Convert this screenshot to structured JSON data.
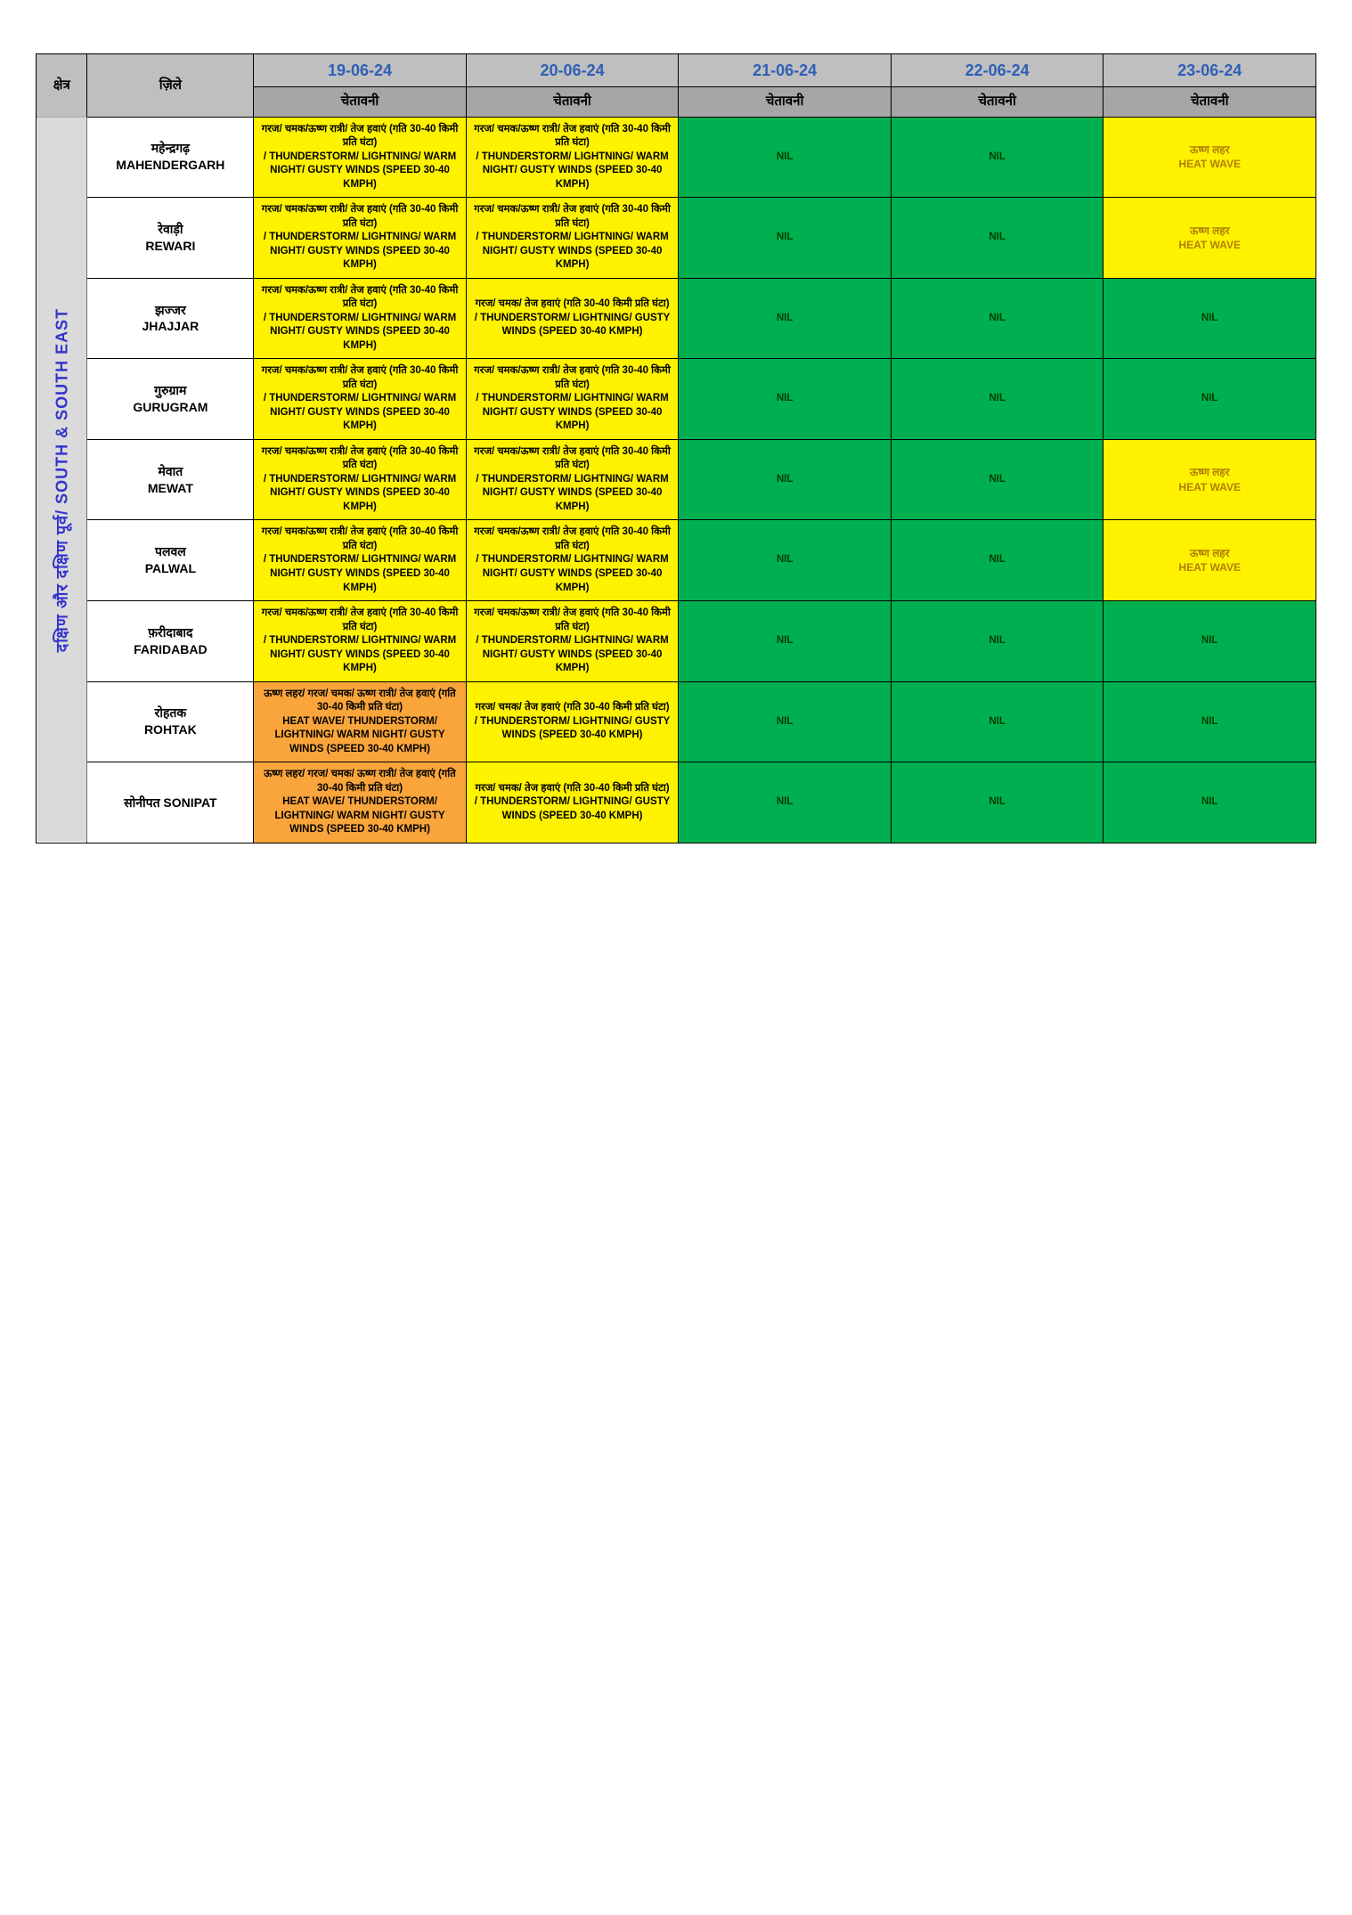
{
  "colors": {
    "header_grey": "#bfbfbf",
    "warning_grey": "#a6a6a6",
    "region_bg": "#dadada",
    "region_text": "#3333cc",
    "date_text": "#2e5fb7",
    "yellow": "#fff200",
    "orange": "#f9a53b",
    "green": "#00b050",
    "white": "#ffffff",
    "border": "#000000"
  },
  "header": {
    "region": "क्षेत्र",
    "district": "ज़िले",
    "dates": [
      "19-06-24",
      "20-06-24",
      "21-06-24",
      "22-06-24",
      "23-06-24"
    ],
    "warning": "चेतावनी"
  },
  "region_label": "दक्षिण और दक्षिण पूर्व/ SOUTH & SOUTH EAST",
  "warnings": {
    "ts_warm": "गरज/ चमक/ऊष्ण रात्री/ तेज हवाएं (गति 30-40 किमी प्रति घंटा)\n/ THUNDERSTORM/ LIGHTNING/ WARM NIGHT/ GUSTY WINDS (SPEED 30-40 KMPH)",
    "ts": "गरज/ चमक/ तेज हवाएं (गति 30-40 किमी प्रति घंटा)\n/ THUNDERSTORM/ LIGHTNING/ GUSTY WINDS (SPEED 30-40 KMPH)",
    "heat_ts": "ऊष्ण लहर/ गरज/ चमक/ ऊष्ण रात्री/ तेज हवाएं (गति 30-40 किमी प्रति घंटा)\nHEAT WAVE/ THUNDERSTORM/ LIGHTNING/ WARM NIGHT/ GUSTY WINDS (SPEED 30-40 KMPH)",
    "nil": "NIL",
    "heat": "ऊष्ण लहर\nHEAT WAVE"
  },
  "rows": [
    {
      "district_hi": "महेन्द्रगढ़",
      "district_en": "MAHENDERGARH",
      "cells": [
        {
          "key": "ts_warm",
          "cls": "cell-yellow"
        },
        {
          "key": "ts_warm",
          "cls": "cell-yellow"
        },
        {
          "key": "nil",
          "cls": "cell-green"
        },
        {
          "key": "nil",
          "cls": "cell-green"
        },
        {
          "key": "heat",
          "cls": "cell-heat"
        }
      ]
    },
    {
      "district_hi": "रेवाड़ी",
      "district_en": "REWARI",
      "cells": [
        {
          "key": "ts_warm",
          "cls": "cell-yellow"
        },
        {
          "key": "ts_warm",
          "cls": "cell-yellow"
        },
        {
          "key": "nil",
          "cls": "cell-green"
        },
        {
          "key": "nil",
          "cls": "cell-green"
        },
        {
          "key": "heat",
          "cls": "cell-heat"
        }
      ]
    },
    {
      "district_hi": "झज्जर",
      "district_en": "JHAJJAR",
      "cells": [
        {
          "key": "ts_warm",
          "cls": "cell-yellow"
        },
        {
          "key": "ts",
          "cls": "cell-yellow"
        },
        {
          "key": "nil",
          "cls": "cell-green"
        },
        {
          "key": "nil",
          "cls": "cell-green"
        },
        {
          "key": "nil",
          "cls": "cell-green"
        }
      ]
    },
    {
      "district_hi": "गुरुग्राम",
      "district_en": "GURUGRAM",
      "cells": [
        {
          "key": "ts_warm",
          "cls": "cell-yellow"
        },
        {
          "key": "ts_warm",
          "cls": "cell-yellow"
        },
        {
          "key": "nil",
          "cls": "cell-green"
        },
        {
          "key": "nil",
          "cls": "cell-green"
        },
        {
          "key": "nil",
          "cls": "cell-green"
        }
      ]
    },
    {
      "district_hi": "मेवात",
      "district_en": "MEWAT",
      "cells": [
        {
          "key": "ts_warm",
          "cls": "cell-yellow"
        },
        {
          "key": "ts_warm",
          "cls": "cell-yellow"
        },
        {
          "key": "nil",
          "cls": "cell-green"
        },
        {
          "key": "nil",
          "cls": "cell-green"
        },
        {
          "key": "heat",
          "cls": "cell-heat"
        }
      ]
    },
    {
      "district_hi": "पलवल",
      "district_en": "PALWAL",
      "cells": [
        {
          "key": "ts_warm",
          "cls": "cell-yellow"
        },
        {
          "key": "ts_warm",
          "cls": "cell-yellow"
        },
        {
          "key": "nil",
          "cls": "cell-green"
        },
        {
          "key": "nil",
          "cls": "cell-green"
        },
        {
          "key": "heat",
          "cls": "cell-heat"
        }
      ]
    },
    {
      "district_hi": "फ़रीदाबाद",
      "district_en": "FARIDABAD",
      "cells": [
        {
          "key": "ts_warm",
          "cls": "cell-yellow"
        },
        {
          "key": "ts_warm",
          "cls": "cell-yellow"
        },
        {
          "key": "nil",
          "cls": "cell-green"
        },
        {
          "key": "nil",
          "cls": "cell-green"
        },
        {
          "key": "nil",
          "cls": "cell-green"
        }
      ]
    },
    {
      "district_hi": "रोहतक",
      "district_en": "ROHTAK",
      "cells": [
        {
          "key": "heat_ts",
          "cls": "cell-orange"
        },
        {
          "key": "ts",
          "cls": "cell-yellow"
        },
        {
          "key": "nil",
          "cls": "cell-green"
        },
        {
          "key": "nil",
          "cls": "cell-green"
        },
        {
          "key": "nil",
          "cls": "cell-green"
        }
      ]
    },
    {
      "district_hi": "सोनीपत",
      "district_en": "SONIPAT",
      "single_line": true,
      "cells": [
        {
          "key": "heat_ts",
          "cls": "cell-orange"
        },
        {
          "key": "ts",
          "cls": "cell-yellow"
        },
        {
          "key": "nil",
          "cls": "cell-green"
        },
        {
          "key": "nil",
          "cls": "cell-green"
        },
        {
          "key": "nil",
          "cls": "cell-green"
        }
      ]
    }
  ]
}
